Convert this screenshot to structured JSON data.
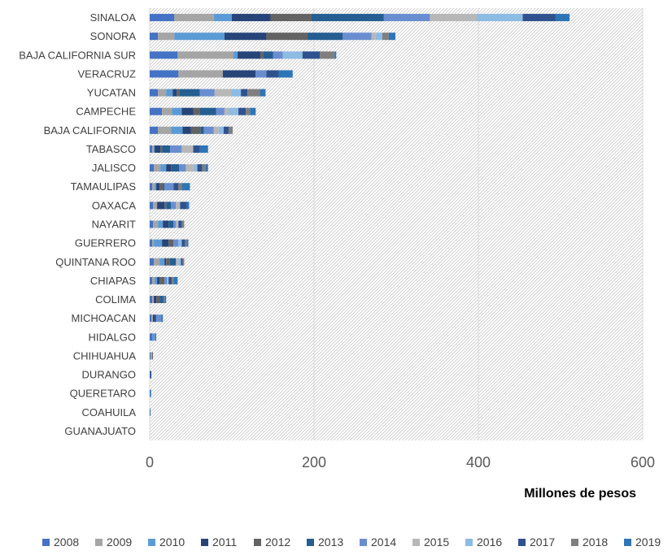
{
  "chart_data": {
    "type": "bar",
    "orientation": "horizontal",
    "stacked": true,
    "xlabel": "Millones de pesos",
    "xlim": [
      0,
      600
    ],
    "xticks": [
      0,
      200,
      400,
      600
    ],
    "grid": true,
    "legend_position": "bottom",
    "categories": [
      "SINALOA",
      "SONORA",
      "BAJA CALIFORNIA SUR",
      "VERACRUZ",
      "YUCATAN",
      "CAMPECHE",
      "BAJA CALIFORNIA",
      "TABASCO",
      "JALISCO",
      "TAMAULIPAS",
      "OAXACA",
      "NAYARIT",
      "GUERRERO",
      "QUINTANA ROO",
      "CHIAPAS",
      "COLIMA",
      "MICHOACAN",
      "HIDALGO",
      "CHIHUAHUA",
      "DURANGO",
      "QUERETARO",
      "COAHUILA",
      "GUANAJUATO"
    ],
    "series": [
      {
        "name": "2008",
        "color": "#4472C4",
        "values": [
          30,
          10,
          34,
          35,
          10,
          15,
          10,
          3,
          5,
          3,
          4,
          4,
          3,
          5,
          3,
          3,
          2,
          3,
          1,
          1,
          1,
          1,
          0
        ]
      },
      {
        "name": "2009",
        "color": "#A5A5A5",
        "values": [
          48,
          20,
          68,
          54,
          10,
          12,
          16,
          2,
          8,
          3,
          5,
          6,
          2,
          7,
          3,
          2,
          2,
          0,
          2,
          0,
          0,
          0,
          0
        ]
      },
      {
        "name": "2010",
        "color": "#5B9BD5",
        "values": [
          22,
          61,
          5,
          0,
          8,
          12,
          14,
          1,
          7,
          2,
          0,
          6,
          10,
          6,
          3,
          0,
          0,
          2,
          0,
          0,
          1,
          0,
          0
        ]
      },
      {
        "name": "2011",
        "color": "#264478",
        "values": [
          47,
          51,
          28,
          40,
          5,
          14,
          10,
          7,
          6,
          4,
          9,
          7,
          8,
          2,
          3,
          3,
          2,
          0,
          0,
          1,
          0,
          0,
          0
        ]
      },
      {
        "name": "2012",
        "color": "#636363",
        "values": [
          50,
          50,
          3,
          0,
          3,
          8,
          12,
          2,
          0,
          4,
          2,
          0,
          6,
          4,
          6,
          4,
          0,
          0,
          1,
          0,
          0,
          0,
          0
        ]
      },
      {
        "name": "2013",
        "color": "#255E91",
        "values": [
          88,
          43,
          12,
          0,
          25,
          20,
          4,
          10,
          10,
          2,
          6,
          6,
          0,
          8,
          0,
          3,
          2,
          0,
          0,
          0,
          0,
          0,
          0
        ]
      },
      {
        "name": "2014",
        "color": "#698ED0",
        "values": [
          56,
          35,
          12,
          13,
          18,
          10,
          12,
          14,
          8,
          11,
          6,
          3,
          6,
          0,
          3,
          0,
          6,
          2,
          0,
          0,
          0,
          0,
          0
        ]
      },
      {
        "name": "2015",
        "color": "#B7B7B7",
        "values": [
          57,
          5,
          0,
          0,
          20,
          5,
          6,
          14,
          10,
          0,
          5,
          3,
          0,
          3,
          0,
          0,
          0,
          0,
          0,
          0,
          0,
          0,
          0
        ]
      },
      {
        "name": "2016",
        "color": "#8CBBE4",
        "values": [
          56,
          8,
          24,
          0,
          12,
          12,
          6,
          0,
          4,
          0,
          0,
          0,
          4,
          3,
          2,
          0,
          0,
          0,
          0,
          0,
          0,
          0,
          0
        ]
      },
      {
        "name": "2017",
        "color": "#2F528F",
        "values": [
          40,
          0,
          21,
          15,
          8,
          9,
          6,
          8,
          6,
          6,
          8,
          4,
          4,
          2,
          4,
          2,
          0,
          0,
          0,
          0,
          0,
          0,
          0
        ]
      },
      {
        "name": "2018",
        "color": "#7F7F7F",
        "values": [
          0,
          8,
          18,
          0,
          15,
          5,
          5,
          0,
          4,
          4,
          0,
          3,
          2,
          2,
          2,
          1,
          0,
          0,
          0,
          0,
          0,
          0,
          0
        ]
      },
      {
        "name": "2019",
        "color": "#2E75B6",
        "values": [
          17,
          8,
          2,
          17,
          7,
          7,
          0,
          10,
          3,
          10,
          3,
          0,
          2,
          0,
          5,
          2,
          2,
          1,
          0,
          0,
          0,
          0,
          0
        ]
      }
    ]
  }
}
